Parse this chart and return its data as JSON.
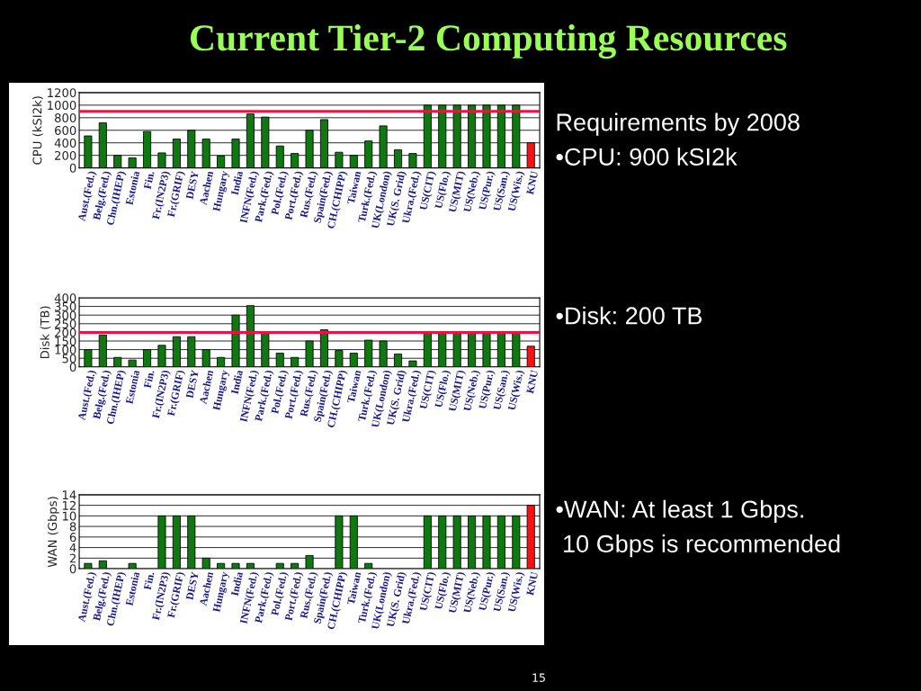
{
  "chart_data": [
    {
      "type": "bar",
      "title": "Current Tier-2 Computing Resources",
      "ylabel": "CPU (kSI2k)",
      "categories": [
        "Aust.(Fed.)",
        "Belg.(Fed.)",
        "Chn.(IHEP)",
        "Estonia",
        "Fin.",
        "Fr.(IN2P3)",
        "Fr.(GRIF)",
        "DESY",
        "Aachen",
        "Hungary",
        "India",
        "INFN(Fed.)",
        "Park.(Fed.)",
        "Pol.(Fed.)",
        "Port.(Fed.)",
        "Rus.(Fed.)",
        "Spain(Fed.)",
        "CH.(CHIPP)",
        "Taiwan",
        "Turk.(Fed.)",
        "UK(London)",
        "UK(S. Grid)",
        "Ukra.(Fed.)",
        "US(CIT)",
        "US(Flo.)",
        "US(MIT)",
        "US(Neb.)",
        "US(Pur.)",
        "US(San.)",
        "US(Wis.)",
        "KNU"
      ],
      "values": [
        510,
        720,
        200,
        160,
        580,
        240,
        460,
        600,
        460,
        190,
        460,
        860,
        810,
        350,
        230,
        600,
        770,
        250,
        200,
        430,
        670,
        290,
        230,
        1000,
        1000,
        1000,
        1000,
        1000,
        1000,
        1000,
        400
      ],
      "colors": [
        "#107810",
        "#107810",
        "#107810",
        "#107810",
        "#107810",
        "#107810",
        "#107810",
        "#107810",
        "#107810",
        "#107810",
        "#107810",
        "#107810",
        "#107810",
        "#107810",
        "#107810",
        "#107810",
        "#107810",
        "#107810",
        "#107810",
        "#107810",
        "#107810",
        "#107810",
        "#107810",
        "#107810",
        "#107810",
        "#107810",
        "#107810",
        "#107810",
        "#107810",
        "#107810",
        "#ff1010"
      ],
      "ylim": [
        0,
        1200
      ],
      "yticks": [
        0,
        200,
        400,
        600,
        800,
        1000,
        1200
      ],
      "grid": "y",
      "ref_lines": [
        {
          "axis": "y",
          "value": 900,
          "color": "#ee1144"
        }
      ],
      "annotations": [
        "Requirements by 2008",
        "•CPU: 900 kSI2k"
      ]
    },
    {
      "type": "bar",
      "ylabel": "Disk (TB)",
      "categories": [
        "Aust.(Fed.)",
        "Belg.(Fed.)",
        "Chn.(IHEP)",
        "Estonia",
        "Fin.",
        "Fr.(IN2P3)",
        "Fr.(GRIF)",
        "DESY",
        "Aachen",
        "Hungary",
        "India",
        "INFN(Fed.)",
        "Park.(Fed.)",
        "Pol.(Fed.)",
        "Port.(Fed.)",
        "Rus.(Fed.)",
        "Spain(Fed.)",
        "CH.(CHIPP)",
        "Taiwan",
        "Turk.(Fed.)",
        "UK(London)",
        "UK(S. Grid)",
        "Ukra.(Fed.)",
        "US(CIT)",
        "US(Flo.)",
        "US(MIT)",
        "US(Neb.)",
        "US(Pur.)",
        "US(San.)",
        "US(Wis.)",
        "KNU"
      ],
      "values": [
        100,
        185,
        55,
        40,
        100,
        125,
        175,
        175,
        100,
        55,
        300,
        355,
        200,
        80,
        55,
        150,
        215,
        95,
        80,
        155,
        150,
        75,
        35,
        200,
        200,
        200,
        200,
        200,
        200,
        200,
        120
      ],
      "colors": [
        "#107810",
        "#107810",
        "#107810",
        "#107810",
        "#107810",
        "#107810",
        "#107810",
        "#107810",
        "#107810",
        "#107810",
        "#107810",
        "#107810",
        "#107810",
        "#107810",
        "#107810",
        "#107810",
        "#107810",
        "#107810",
        "#107810",
        "#107810",
        "#107810",
        "#107810",
        "#107810",
        "#107810",
        "#107810",
        "#107810",
        "#107810",
        "#107810",
        "#107810",
        "#107810",
        "#ff1010"
      ],
      "ylim": [
        0,
        400
      ],
      "yticks": [
        0,
        50,
        100,
        150,
        200,
        250,
        300,
        350,
        400
      ],
      "grid": "y",
      "ref_lines": [
        {
          "axis": "y",
          "value": 200,
          "color": "#ee1144"
        }
      ],
      "annotations": [
        "•Disk: 200 TB"
      ]
    },
    {
      "type": "bar",
      "ylabel": "WAN (Gbps)",
      "categories": [
        "Aust.(Fed.)",
        "Belg.(Fed.)",
        "Chn.(IHEP)",
        "Estonia",
        "Fin.",
        "Fr.(IN2P3)",
        "Fr.(GRIF)",
        "DESY",
        "Aachen",
        "Hungary",
        "India",
        "INFN(Fed.)",
        "Park.(Fed.)",
        "Pol.(Fed.)",
        "Port.(Fed.)",
        "Rus.(Fed.)",
        "Spain(Fed.)",
        "CH.(CHIPP)",
        "Taiwan",
        "Turk.(Fed.)",
        "UK(London)",
        "UK(S. Grid)",
        "Ukra.(Fed.)",
        "US(CIT)",
        "US(Flo.)",
        "US(MIT)",
        "US(Neb.)",
        "US(Pur.)",
        "US(San.)",
        "US(Wis.)",
        "KNU"
      ],
      "values": [
        1,
        1.5,
        null,
        1,
        null,
        10,
        10,
        10,
        2,
        1,
        1,
        1,
        null,
        1,
        1,
        2.5,
        null,
        10,
        10,
        1,
        null,
        null,
        null,
        10,
        10,
        10,
        10,
        10,
        10,
        10,
        12
      ],
      "colors": [
        "#107810",
        "#107810",
        "#107810",
        "#107810",
        "#107810",
        "#107810",
        "#107810",
        "#107810",
        "#107810",
        "#107810",
        "#107810",
        "#107810",
        "#107810",
        "#107810",
        "#107810",
        "#107810",
        "#107810",
        "#107810",
        "#107810",
        "#107810",
        "#107810",
        "#107810",
        "#107810",
        "#107810",
        "#107810",
        "#107810",
        "#107810",
        "#107810",
        "#107810",
        "#107810",
        "#ff1010"
      ],
      "ylim": [
        0,
        14
      ],
      "yticks": [
        0,
        2,
        4,
        6,
        8,
        10,
        12,
        14
      ],
      "grid": "y",
      "annotations": [
        "•WAN: At least 1 Gbps.",
        " 10 Gbps is recommended",
        "15"
      ]
    }
  ]
}
